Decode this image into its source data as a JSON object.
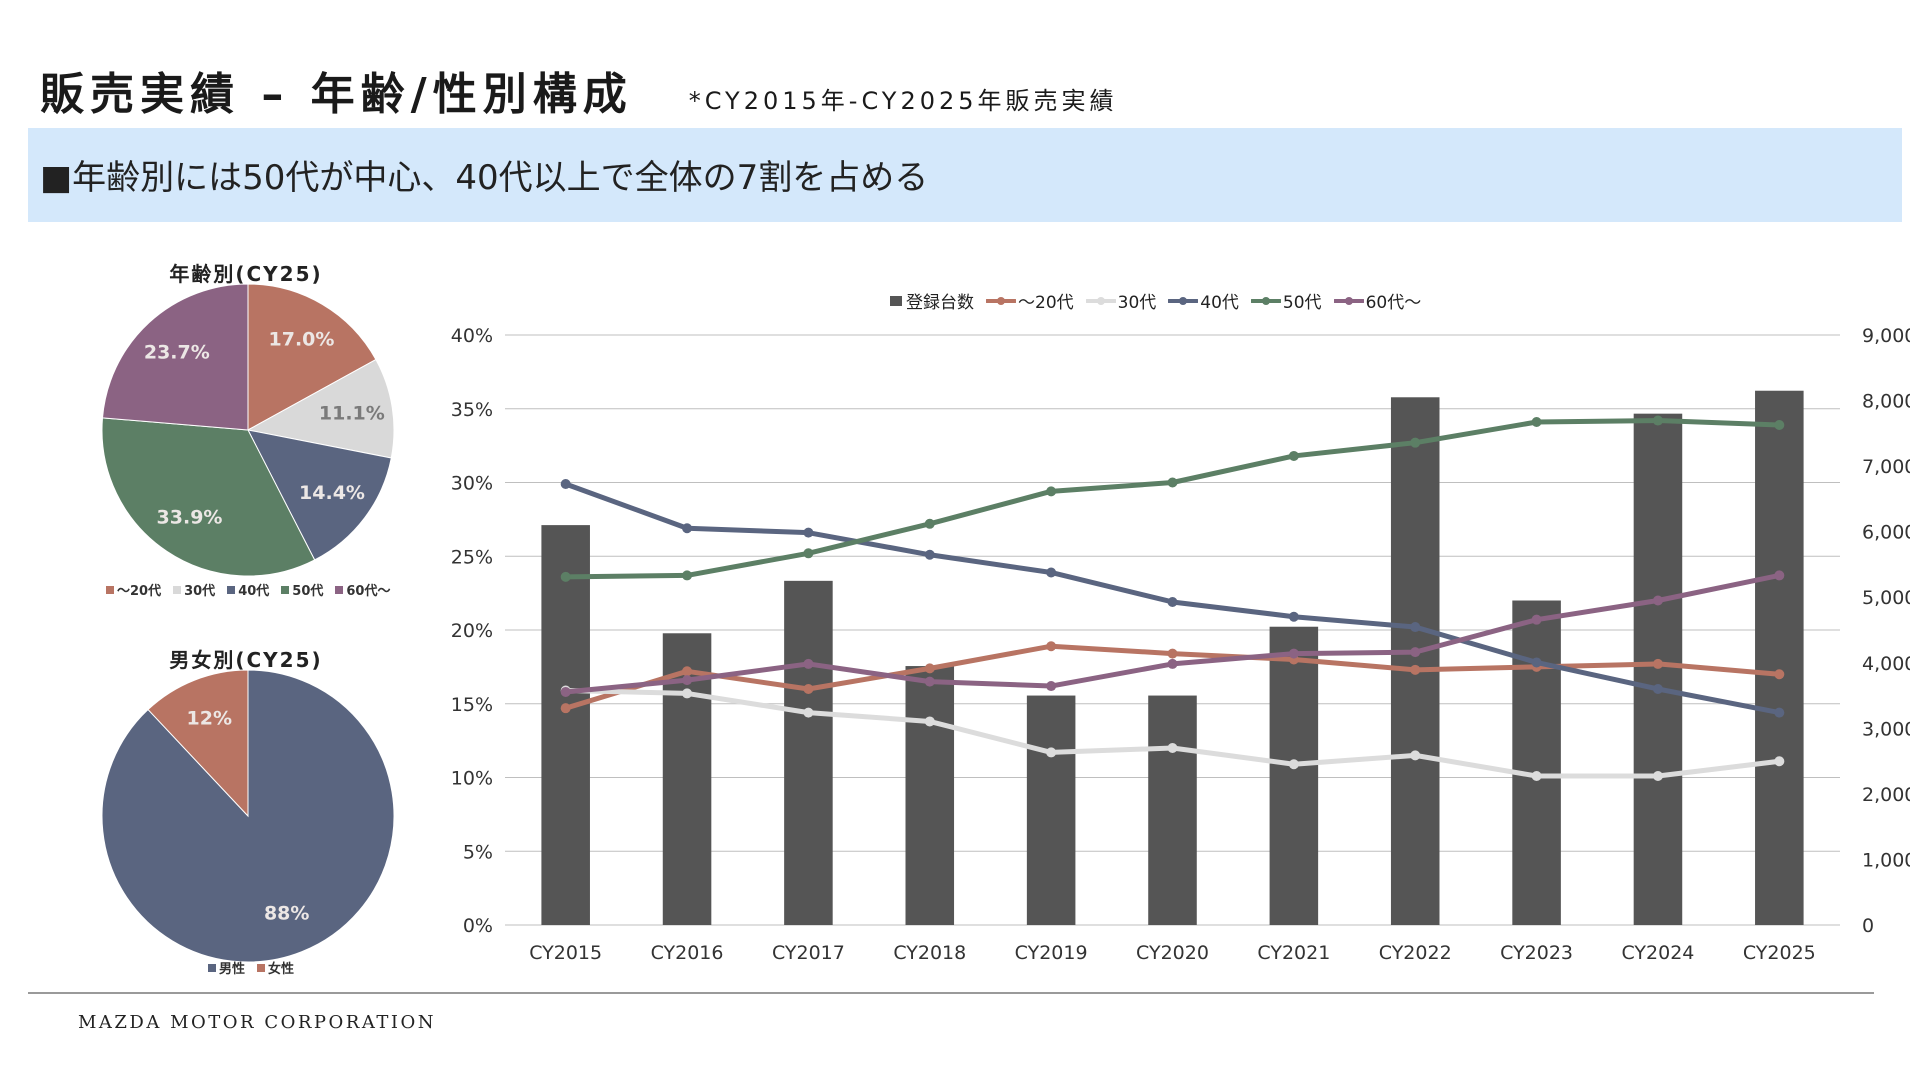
{
  "header": {
    "title": "販売実績 – 年齢/性別構成",
    "subtitle": "*CY2015年-CY2025年販売実績"
  },
  "banner": {
    "text": "■年齢別には50代が中心、40代以上で全体の7割を占める"
  },
  "footer": {
    "company": "MAZDA MOTOR CORPORATION"
  },
  "chart_data": [
    {
      "type": "pie",
      "title": "年齢別(CY25)",
      "labels": [
        "～20代",
        "30代",
        "40代",
        "50代",
        "60代～"
      ],
      "values": [
        17.0,
        11.1,
        14.4,
        33.9,
        23.7
      ],
      "data_labels": [
        "17.0%",
        "11.1%",
        "14.4%",
        "33.9%",
        "23.7%"
      ],
      "colors": [
        "#b87463",
        "#d9d9d9",
        "#5a6580",
        "#5c7f65",
        "#8b6383"
      ],
      "legend": "bottom"
    },
    {
      "type": "pie",
      "title": "男女別(CY25)",
      "labels": [
        "男性",
        "女性"
      ],
      "values": [
        88,
        12
      ],
      "data_labels": [
        "88%",
        "12%"
      ],
      "colors": [
        "#5a6580",
        "#b87463"
      ],
      "legend": "bottom"
    },
    {
      "type": "bar",
      "categories": [
        "CY2015",
        "CY2016",
        "CY2017",
        "CY2018",
        "CY2019",
        "CY2020",
        "CY2021",
        "CY2022",
        "CY2023",
        "CY2024",
        "CY2025"
      ],
      "bar_series": {
        "name": "登録台数",
        "color": "#555555",
        "values": [
          6100,
          4450,
          5250,
          3950,
          3500,
          3500,
          4550,
          8050,
          4950,
          7800,
          8150
        ],
        "axis": "right"
      },
      "line_series": [
        {
          "name": "～20代",
          "color": "#b87463",
          "values": [
            14.7,
            17.2,
            16.0,
            17.4,
            18.9,
            18.4,
            18.0,
            17.3,
            17.5,
            17.7,
            17.0
          ]
        },
        {
          "name": "30代",
          "color": "#dcdcdc",
          "values": [
            15.9,
            15.7,
            14.4,
            13.8,
            11.7,
            12.0,
            10.9,
            11.5,
            10.1,
            10.1,
            11.1
          ]
        },
        {
          "name": "40代",
          "color": "#5a6580",
          "values": [
            29.9,
            26.9,
            26.6,
            25.1,
            23.9,
            21.9,
            20.9,
            20.2,
            17.8,
            16.0,
            14.4
          ]
        },
        {
          "name": "50代",
          "color": "#5c7f65",
          "values": [
            23.6,
            23.7,
            25.2,
            27.2,
            29.4,
            30.0,
            31.8,
            32.7,
            34.1,
            34.2,
            33.9
          ]
        },
        {
          "name": "60代～",
          "color": "#8b6383",
          "values": [
            15.8,
            16.6,
            17.7,
            16.5,
            16.2,
            17.7,
            18.4,
            18.5,
            20.7,
            22.0,
            23.7
          ]
        }
      ],
      "y_left": {
        "min": 0,
        "max": 40,
        "ticks": [
          "0%",
          "5%",
          "10%",
          "15%",
          "20%",
          "25%",
          "30%",
          "35%",
          "40%"
        ]
      },
      "y_right": {
        "min": 0,
        "max": 9000,
        "ticks": [
          "0",
          "1,000",
          "2,000",
          "3,000",
          "4,000",
          "5,000",
          "6,000",
          "7,000",
          "8,000",
          "9,000"
        ]
      },
      "grid": true,
      "legend": "top"
    }
  ]
}
